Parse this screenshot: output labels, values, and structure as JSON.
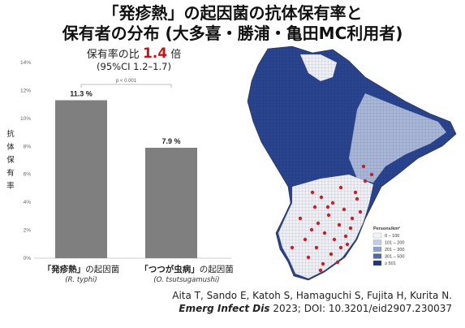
{
  "title_line1": "「発疹熱」の起因菌の抗体保有率と",
  "title_line2": "保有者の分布 (大多喜・勝浦・亀田MC利用者)",
  "ratio_prefix": "保有率の比",
  "ratio_value": "1.4",
  "ratio_suffix": "倍",
  "ci_text": "(95%CI 1.2–1.7)",
  "p_value": "p < 0.001",
  "ylabel_chars": [
    "抗",
    "体",
    "保",
    "有",
    "率"
  ],
  "chart_data": {
    "type": "bar",
    "categories": [
      "murine-typhus",
      "scrub-typhus"
    ],
    "values": [
      11.3,
      7.9
    ],
    "value_labels": [
      "11.3 %",
      "7.9 %"
    ],
    "ylim": [
      0,
      14
    ],
    "yticks": [
      "0%",
      "2%",
      "4%",
      "6%",
      "8%",
      "10%",
      "12%",
      "14%"
    ],
    "bar_color": "#7f7f7f",
    "grid": false
  },
  "cat1": {
    "bold": "「発疹熱」",
    "rest": "の起因菌",
    "sub": "(R. typhi)"
  },
  "cat2": {
    "bold": "「つつが虫病」",
    "rest": "の起因菌",
    "sub": "(O. tsutsugamushi)"
  },
  "citation_line1": "Aita T, Sando E, Katoh S, Hamaguchi S, Fujita H, Kurita N.",
  "citation_journal": "Emerg Infect Dis",
  "citation_rest": " 2023; DOI: 10.3201/eid2907.230037",
  "map_legend": {
    "title": "Persons/km²",
    "items": [
      {
        "label": "0 – 100",
        "color": "#f3f4f8"
      },
      {
        "label": "101 – 200",
        "color": "#c3cde3"
      },
      {
        "label": "201 – 300",
        "color": "#8ea3cc"
      },
      {
        "label": "301 – 500",
        "color": "#4e68a8"
      },
      {
        "label": "≥ 501",
        "color": "#1d3480"
      }
    ]
  }
}
